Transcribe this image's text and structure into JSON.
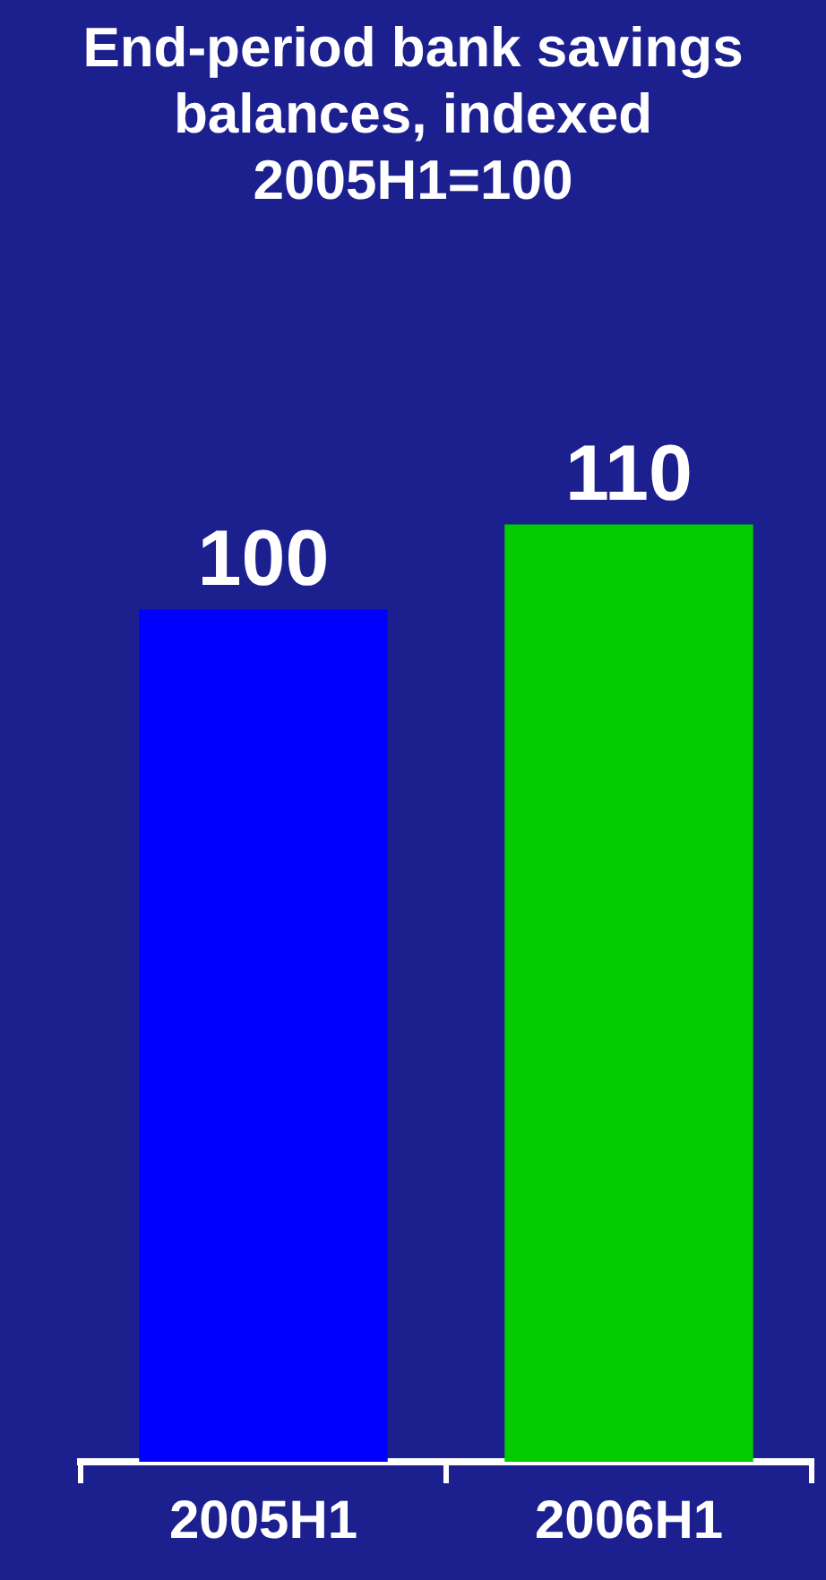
{
  "chart_data": {
    "type": "bar",
    "title": "End-period bank savings balances, indexed 2005H1=100",
    "categories": [
      "2005H1",
      "2006H1"
    ],
    "values": [
      100,
      110
    ],
    "colors": [
      "#0000ff",
      "#00cc00"
    ],
    "data_labels": true,
    "grid": false,
    "legend": false
  }
}
